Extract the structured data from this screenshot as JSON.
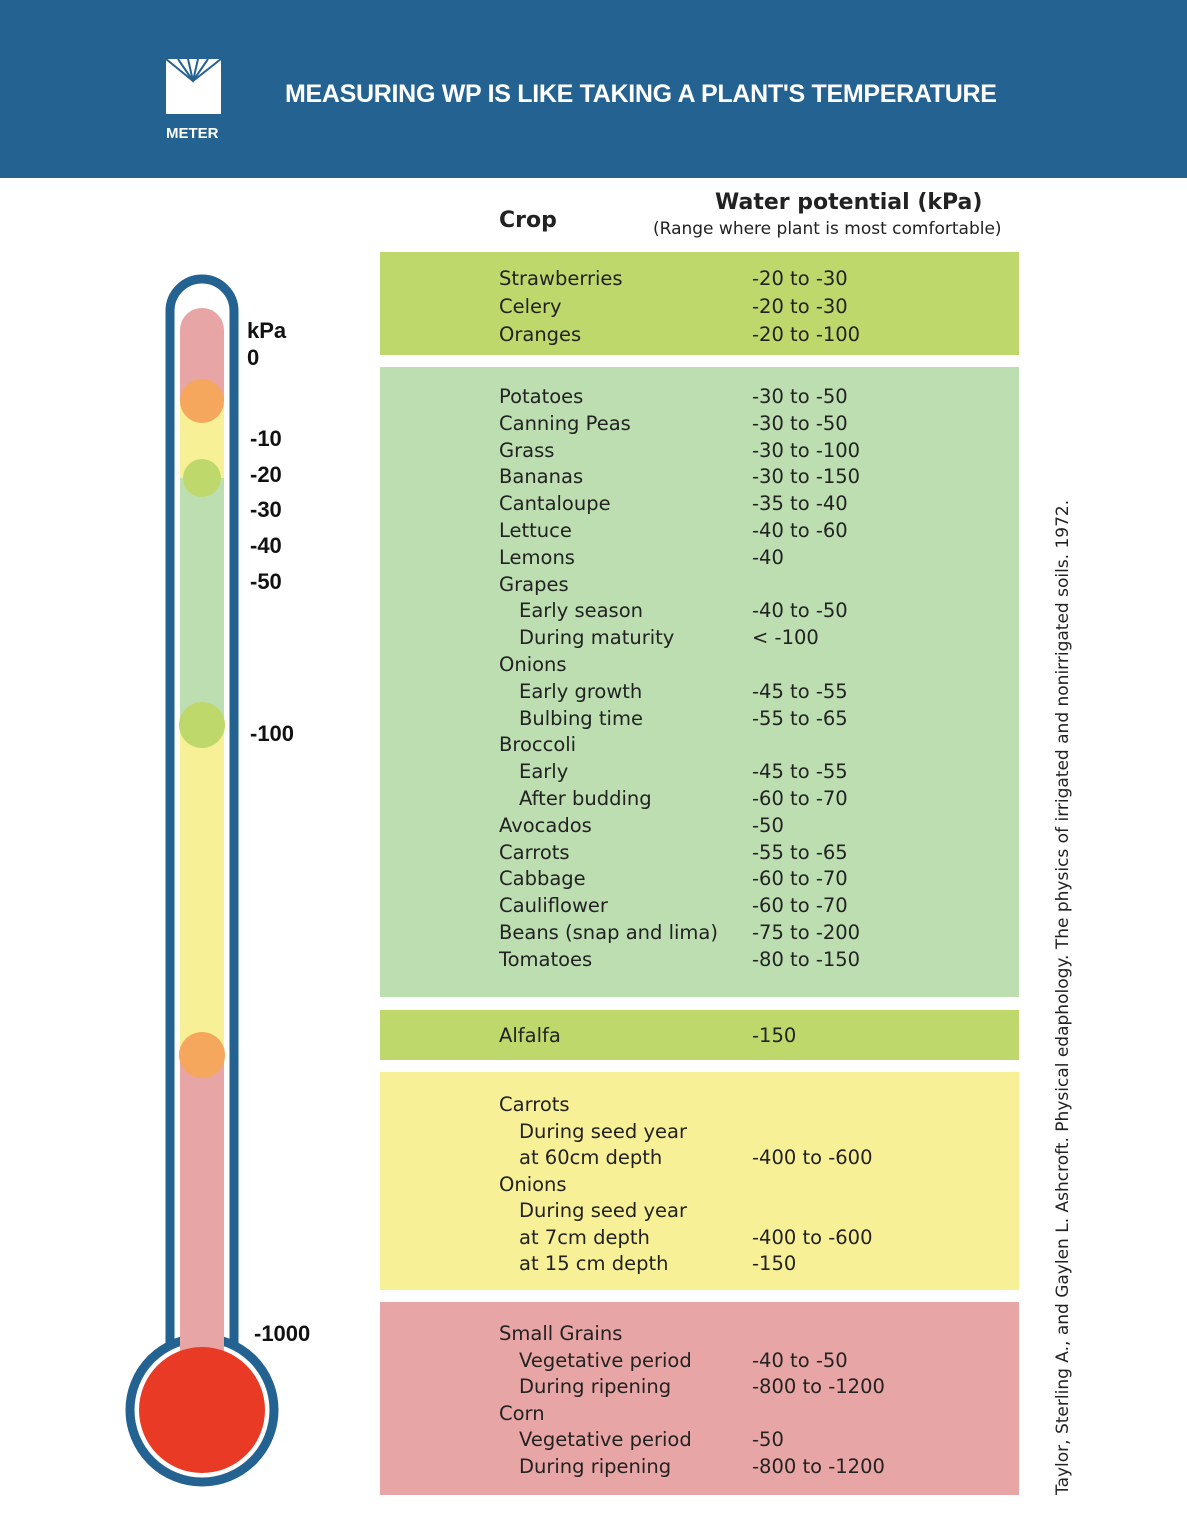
{
  "header": {
    "title": "MEASURING WP IS LIKE TAKING A PLANT'S TEMPERATURE",
    "logo_text": "METER",
    "bg_color": "#236291"
  },
  "columns": {
    "crop": "Crop",
    "water_potential": "Water potential (kPa)",
    "water_potential_sub": "(Range where plant is most comfortable)"
  },
  "thermometer": {
    "unit": "kPa",
    "ticks": [
      "0",
      "-10",
      "-20",
      "-30",
      "-40",
      "-50",
      "-100",
      "-1000"
    ]
  },
  "sections": [
    {
      "color": "#bfd86b",
      "rows": [
        {
          "crop": "Strawberries",
          "value": "-20 to -30"
        },
        {
          "crop": "Celery",
          "value": "-20 to -30"
        },
        {
          "crop": "Oranges",
          "value": "-20 to -100"
        }
      ]
    },
    {
      "color": "#bcdeb1",
      "rows": [
        {
          "crop": "Potatoes",
          "value": "-30 to -50"
        },
        {
          "crop": "Canning Peas",
          "value": "-30 to -50"
        },
        {
          "crop": "Grass",
          "value": "-30 to -100"
        },
        {
          "crop": "Bananas",
          "value": "-30 to -150"
        },
        {
          "crop": "Cantaloupe",
          "value": "-35 to -40"
        },
        {
          "crop": "Lettuce",
          "value": "-40 to -60"
        },
        {
          "crop": "Lemons",
          "value": "-40"
        },
        {
          "crop": "Grapes",
          "value": ""
        },
        {
          "crop": "Early season",
          "value": "-40 to -50",
          "indent": true
        },
        {
          "crop": "During maturity",
          "value": "< -100",
          "indent": true
        },
        {
          "crop": "Onions",
          "value": ""
        },
        {
          "crop": "Early growth",
          "value": "-45 to -55",
          "indent": true
        },
        {
          "crop": "Bulbing time",
          "value": "-55 to -65",
          "indent": true
        },
        {
          "crop": "Broccoli",
          "value": ""
        },
        {
          "crop": "Early",
          "value": "-45 to -55",
          "indent": true
        },
        {
          "crop": "After budding",
          "value": "-60 to -70",
          "indent": true
        },
        {
          "crop": "Avocados",
          "value": "-50"
        },
        {
          "crop": "Carrots",
          "value": "-55 to -65"
        },
        {
          "crop": "Cabbage",
          "value": "-60 to -70"
        },
        {
          "crop": "Cauliflower",
          "value": "-60 to -70"
        },
        {
          "crop": "Beans (snap and lima)",
          "value": "-75 to -200"
        },
        {
          "crop": "Tomatoes",
          "value": "-80 to -150"
        }
      ]
    },
    {
      "color": "#bfd86b",
      "rows": [
        {
          "crop": "Alfalfa",
          "value": "-150"
        }
      ]
    },
    {
      "color": "#f8f096",
      "rows": [
        {
          "crop": "Carrots",
          "value": ""
        },
        {
          "crop": "During seed year",
          "value": "",
          "indent": true
        },
        {
          "crop": "at 60cm depth",
          "value": "-400 to -600",
          "indent": true
        },
        {
          "crop": "Onions",
          "value": ""
        },
        {
          "crop": "During seed year",
          "value": "",
          "indent": true
        },
        {
          "crop": "at 7cm depth",
          "value": "-400 to -600",
          "indent": true
        },
        {
          "crop": "at 15 cm depth",
          "value": "-150",
          "indent": true
        }
      ]
    },
    {
      "color": "#e8a5a5",
      "rows": [
        {
          "crop": "Small Grains",
          "value": ""
        },
        {
          "crop": "Vegetative period",
          "value": "-40 to -50",
          "indent": true
        },
        {
          "crop": "During ripening",
          "value": "-800 to -1200",
          "indent": true
        },
        {
          "crop": "Corn",
          "value": ""
        },
        {
          "crop": "Vegetative period",
          "value": "-50",
          "indent": true
        },
        {
          "crop": "During ripening",
          "value": "-800 to -1200",
          "indent": true
        }
      ]
    }
  ],
  "citation": "Taylor, Sterling A., and Gaylen L. Ashcroft. Physical edaphology. The physics of irrigated and nonirrigated soils. 1972."
}
